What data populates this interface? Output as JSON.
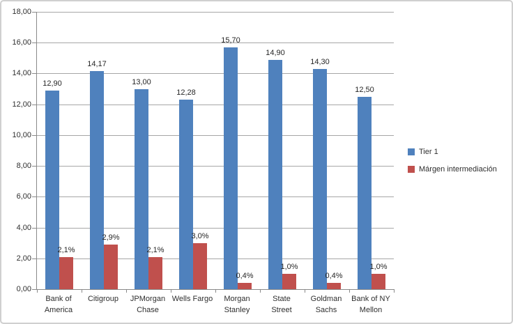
{
  "chart_data": {
    "type": "bar",
    "title": "",
    "xlabel": "",
    "ylabel": "",
    "categories": [
      "Bank of America",
      "Citigroup",
      "JPMorgan Chase",
      "Wells Fargo",
      "Morgan Stanley",
      "State Street",
      "Goldman Sachs",
      "Bank of NY Mellon"
    ],
    "category_lines": [
      [
        "Bank of",
        "America"
      ],
      [
        "Citigroup"
      ],
      [
        "JPMorgan",
        "Chase"
      ],
      [
        "Wells Fargo"
      ],
      [
        "Morgan",
        "Stanley"
      ],
      [
        "State",
        "Street"
      ],
      [
        "Goldman",
        "Sachs"
      ],
      [
        "Bank of NY",
        "Mellon"
      ]
    ],
    "series": [
      {
        "name": "Tier 1",
        "color": "#4f81bd",
        "values": [
          12.9,
          14.17,
          13.0,
          12.28,
          15.7,
          14.9,
          14.3,
          12.5
        ],
        "data_labels": [
          "12,90",
          "14,17",
          "13,00",
          "12,28",
          "15,70",
          "14,90",
          "14,30",
          "12,50"
        ]
      },
      {
        "name": "Márgen intermediación",
        "color": "#c0504d",
        "values": [
          2.1,
          2.9,
          2.1,
          3.0,
          0.4,
          1.0,
          0.4,
          1.0
        ],
        "data_labels": [
          "2,1%",
          "2,9%",
          "2,1%",
          "3,0%",
          "0,4%",
          "1,0%",
          "0,4%",
          "1,0%"
        ]
      }
    ],
    "y_axis": {
      "min": 0,
      "max": 18,
      "step": 2,
      "tick_labels": [
        "0,00",
        "2,00",
        "4,00",
        "6,00",
        "8,00",
        "10,00",
        "12,00",
        "14,00",
        "16,00",
        "18,00"
      ]
    },
    "grid": true,
    "legend_position": "right",
    "colors": {
      "gridline": "#a6a6a6",
      "axis": "#898989",
      "text": "#2e2e2e",
      "chart_border": "#cfcfcf",
      "background": "#ffffff"
    }
  }
}
